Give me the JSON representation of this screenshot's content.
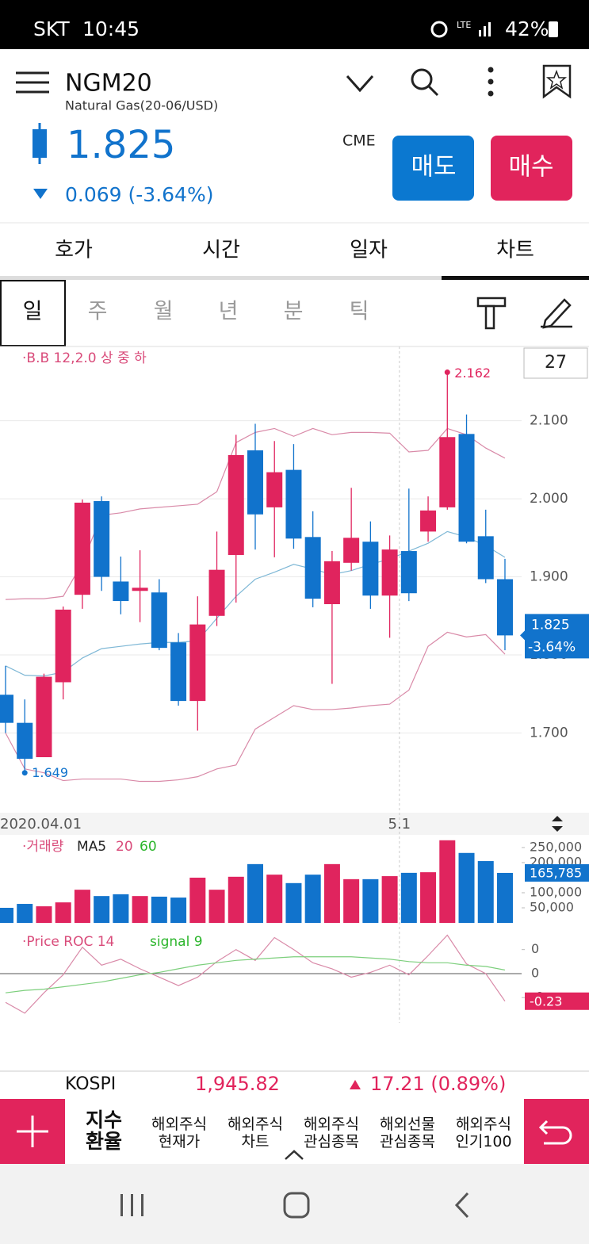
{
  "status_bar": {
    "carrier": "SKT",
    "time": "10:45",
    "battery": "42%"
  },
  "header": {
    "symbol": "NGM20",
    "name": "Natural Gas(20-06/USD)",
    "price": "1.825",
    "change": "0.069 (-3.64%)",
    "exchange": "CME",
    "sell": "매도",
    "buy": "매수"
  },
  "tabs": [
    "호가",
    "시간",
    "일자",
    "차트"
  ],
  "periods": [
    "일",
    "주",
    "월",
    "년",
    "분",
    "틱"
  ],
  "chart": {
    "type": "candlestick",
    "indicator_label": "·B.B 12,2.0 상 중 하",
    "candle_count": "27",
    "up_color": "#e0245e",
    "down_color": "#1173cc",
    "open": [
      1.749,
      1.713,
      1.669,
      1.765,
      1.877,
      1.997,
      1.894,
      1.882,
      1.88,
      1.816,
      1.741,
      1.85,
      1.928,
      2.062,
      1.989,
      2.037,
      1.951,
      1.865,
      1.918,
      1.945,
      1.876,
      1.933,
      1.958,
      1.989,
      2.083,
      1.952,
      1.897
    ],
    "high": [
      1.786,
      1.743,
      1.776,
      1.862,
      1.999,
      2.003,
      1.926,
      1.934,
      1.897,
      1.828,
      1.875,
      1.958,
      2.082,
      2.096,
      2.074,
      2.07,
      1.984,
      1.933,
      2.014,
      1.971,
      1.953,
      2.013,
      2.003,
      2.162,
      2.108,
      1.986,
      1.923
    ],
    "low": [
      1.7,
      1.649,
      1.669,
      1.743,
      1.859,
      1.882,
      1.852,
      1.842,
      1.806,
      1.735,
      1.703,
      1.837,
      1.867,
      1.935,
      1.925,
      1.936,
      1.861,
      1.763,
      1.908,
      1.859,
      1.822,
      1.869,
      1.945,
      1.986,
      1.943,
      1.892,
      1.806
    ],
    "close": [
      1.713,
      1.667,
      1.772,
      1.858,
      1.995,
      1.9,
      1.869,
      1.886,
      1.809,
      1.741,
      1.839,
      1.909,
      2.056,
      1.98,
      2.034,
      1.949,
      1.872,
      1.92,
      1.95,
      1.876,
      1.935,
      1.879,
      1.985,
      2.079,
      1.945,
      1.897,
      1.825
    ],
    "bb_upper": [
      1.871,
      1.872,
      1.872,
      1.875,
      1.918,
      1.979,
      1.982,
      1.987,
      1.989,
      1.991,
      1.993,
      2.009,
      2.072,
      2.085,
      2.09,
      2.08,
      2.09,
      2.082,
      2.085,
      2.085,
      2.084,
      2.06,
      2.062,
      2.09,
      2.082,
      2.065,
      2.052
    ],
    "bb_middle": [
      1.786,
      1.774,
      1.773,
      1.778,
      1.796,
      1.808,
      1.811,
      1.814,
      1.816,
      1.816,
      1.818,
      1.847,
      1.875,
      1.897,
      1.906,
      1.916,
      1.91,
      1.903,
      1.908,
      1.916,
      1.923,
      1.933,
      1.943,
      1.958,
      1.951,
      1.94,
      1.925
    ],
    "bb_lower": [
      1.7,
      1.654,
      1.649,
      1.639,
      1.641,
      1.641,
      1.641,
      1.638,
      1.638,
      1.64,
      1.644,
      1.654,
      1.659,
      1.705,
      1.72,
      1.735,
      1.73,
      1.73,
      1.732,
      1.735,
      1.737,
      1.755,
      1.811,
      1.829,
      1.823,
      1.826,
      1.801
    ],
    "dates": [
      "2020.04.01",
      null,
      null,
      null,
      null,
      null,
      null,
      null,
      null,
      null,
      null,
      null,
      null,
      null,
      null,
      null,
      null,
      null,
      null,
      null,
      null,
      "5.1",
      null,
      null,
      null,
      null,
      null
    ],
    "high_label": "2.162",
    "low_label": "1.649",
    "last_price": "1.825",
    "last_change": "-3.64%",
    "ylim": [
      1.603,
      2.192
    ],
    "yticks": [
      {
        "value": 1.7,
        "label": "1.700"
      },
      {
        "value": 1.8,
        "label": "1.800"
      },
      {
        "value": 1.9,
        "label": "1.900"
      },
      {
        "value": 2.0,
        "label": "2.000"
      },
      {
        "value": 2.1,
        "label": "2.100"
      }
    ],
    "grid": true
  },
  "volume": {
    "label": "·거래량",
    "ma": "MA5",
    "ma20": "20",
    "ma60": "60",
    "values": [
      50000,
      63000,
      55000,
      68000,
      110000,
      89000,
      95000,
      89000,
      87000,
      84000,
      150000,
      110000,
      153000,
      195000,
      160000,
      132000,
      160000,
      195000,
      145000,
      145000,
      155000,
      166000,
      168000,
      274000,
      232000,
      205000,
      165785
    ],
    "last_label": "165,785",
    "ylim": [
      0,
      284000
    ],
    "yticks": [
      {
        "value": 50000,
        "label": "50,000"
      },
      {
        "value": 100000,
        "label": "100,000"
      },
      {
        "value": 200000,
        "label": "200,000"
      },
      {
        "value": 250000,
        "label": "250,000"
      }
    ]
  },
  "roc": {
    "label": "·Price ROC 14",
    "signal_label": "signal 9",
    "values": [
      -0.24,
      -0.33,
      -0.16,
      -0.01,
      0.22,
      0.07,
      0.12,
      0.04,
      -0.03,
      -0.1,
      -0.03,
      0.1,
      0.2,
      0.11,
      0.3,
      0.2,
      0.09,
      0.04,
      -0.03,
      0.01,
      0.07,
      -0.01,
      0.15,
      0.32,
      0.08,
      0.0,
      -0.23
    ],
    "signal": [
      -0.16,
      -0.14,
      -0.13,
      -0.11,
      -0.09,
      -0.07,
      -0.04,
      -0.01,
      0.01,
      0.04,
      0.07,
      0.09,
      0.11,
      0.12,
      0.13,
      0.14,
      0.14,
      0.14,
      0.14,
      0.13,
      0.12,
      0.1,
      0.09,
      0.09,
      0.07,
      0.06,
      0.03
    ],
    "last_label": "-0.23",
    "ylim": [
      -0.41,
      0.33
    ],
    "yticks": [
      {
        "value": 0.2,
        "label": "0"
      },
      0,
      {
        "value": -0.2,
        "label": "-0"
      }
    ]
  },
  "ticker": {
    "name": "KOSPI",
    "value": "1,945.82",
    "change": "17.21 (0.89%)"
  },
  "bottom_nav": [
    [
      "지수",
      "환율"
    ],
    [
      "해외주식",
      "현재가"
    ],
    [
      "해외주식",
      "차트"
    ],
    [
      "해외주식",
      "관심종목"
    ],
    [
      "해외선물",
      "관심종목"
    ],
    [
      "해외주식",
      "인기100"
    ]
  ]
}
